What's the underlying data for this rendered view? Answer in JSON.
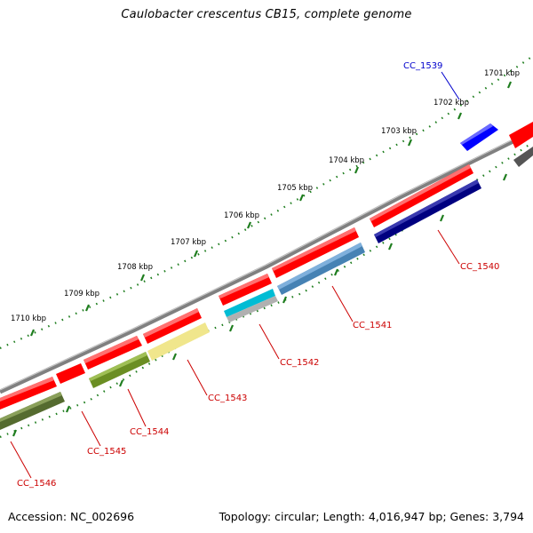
{
  "title": "Caulobacter crescentus CB15, complete genome",
  "footer": {
    "accession": "Accession: NC_002696",
    "summary": "Topology: circular; Length: 4,016,947 bp; Genes: 3,794"
  },
  "colors": {
    "backbone": "#808080",
    "tick_green": "#1e7d1e",
    "forward_gene": "#ff0000",
    "label_red": "#cc0000",
    "label_blue": "#0000cc"
  },
  "kbp_labels": [
    "1701 kbp",
    "1702 kbp",
    "1703 kbp",
    "1704 kbp",
    "1705 kbp",
    "1706 kbp",
    "1707 kbp",
    "1708 kbp",
    "1709 kbp",
    "1710 kbp"
  ],
  "genes": [
    {
      "label": "CC_1539",
      "strand": "forward",
      "label_color": "#0000cc"
    },
    {
      "label": "CC_1540",
      "strand": "forward",
      "label_color": "#cc0000"
    },
    {
      "label": "CC_1541",
      "strand": "forward",
      "label_color": "#cc0000"
    },
    {
      "label": "CC_1542",
      "strand": "forward",
      "label_color": "#cc0000"
    },
    {
      "label": "CC_1543",
      "strand": "forward",
      "label_color": "#cc0000"
    },
    {
      "label": "CC_1544",
      "strand": "forward",
      "label_color": "#cc0000"
    },
    {
      "label": "CC_1545",
      "strand": "forward",
      "label_color": "#cc0000"
    },
    {
      "label": "CC_1546",
      "strand": "forward",
      "label_color": "#cc0000"
    }
  ],
  "feature_colors": [
    "#0000ff",
    "#000080",
    "#4682b4",
    "#00bcd4",
    "#b0b0b0",
    "#f0e68c",
    "#6b8e23",
    "#556b2f"
  ]
}
